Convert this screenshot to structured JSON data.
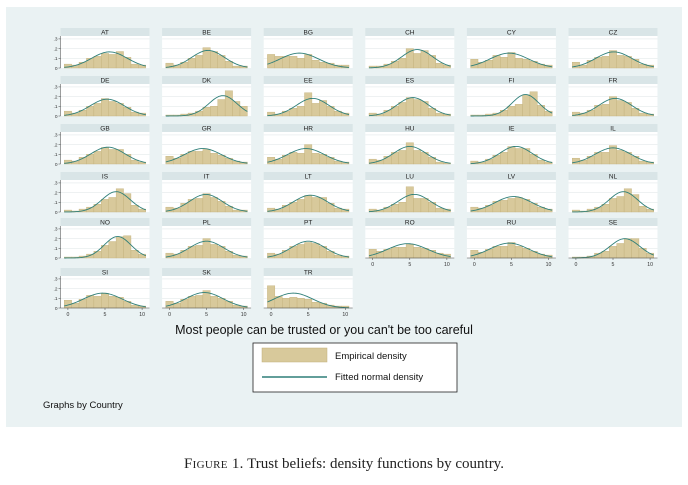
{
  "figure": {
    "caption_label": "Figure 1.",
    "caption_text": "Trust beliefs: density functions by country."
  },
  "colors": {
    "panel_bg": "#eaf2f3",
    "plot_bg": "#ffffff",
    "strip_bg": "#d9e5e7",
    "bar_fill": "#d8c99b",
    "bar_stroke": "#c2b07a",
    "normal_line": "#2f7f79",
    "grid": "#e3e9ea"
  },
  "chart_data": {
    "type": "bar",
    "overlay": "normal density line",
    "xlabel": "Most people can be trusted or you can't be too careful",
    "ylabel": "",
    "x_ticks": [
      0,
      5,
      10
    ],
    "y_ticks": [
      0,
      0.1,
      0.2,
      0.3
    ],
    "y_tick_labels": [
      "0",
      ".1",
      ".2",
      ".3"
    ],
    "ylim": [
      0,
      0.33
    ],
    "categories": [
      0,
      1,
      2,
      3,
      4,
      5,
      6,
      7,
      8,
      9,
      10
    ],
    "legend": {
      "position": "bottom-center",
      "items": [
        "Empirical density",
        "Fitted normal density"
      ]
    },
    "note": "Graphs by Country",
    "panels": [
      {
        "country": "AT",
        "values": [
          0.04,
          0.03,
          0.06,
          0.1,
          0.12,
          0.15,
          0.14,
          0.17,
          0.11,
          0.04,
          0.03
        ],
        "mean": 5.6,
        "sd": 2.4
      },
      {
        "country": "BE",
        "values": [
          0.05,
          0.03,
          0.06,
          0.1,
          0.13,
          0.21,
          0.17,
          0.13,
          0.07,
          0.02,
          0.02
        ],
        "mean": 5.2,
        "sd": 2.2
      },
      {
        "country": "BG",
        "values": [
          0.14,
          0.12,
          0.12,
          0.12,
          0.1,
          0.14,
          0.08,
          0.06,
          0.05,
          0.03,
          0.03
        ],
        "mean": 3.8,
        "sd": 2.6
      },
      {
        "country": "CH",
        "values": [
          0.02,
          0.02,
          0.04,
          0.07,
          0.1,
          0.2,
          0.15,
          0.18,
          0.13,
          0.05,
          0.03
        ],
        "mean": 6.0,
        "sd": 2.1
      },
      {
        "country": "CY",
        "values": [
          0.09,
          0.06,
          0.08,
          0.13,
          0.11,
          0.16,
          0.1,
          0.09,
          0.07,
          0.04,
          0.03
        ],
        "mean": 4.7,
        "sd": 2.6
      },
      {
        "country": "CZ",
        "values": [
          0.06,
          0.03,
          0.08,
          0.11,
          0.12,
          0.18,
          0.13,
          0.12,
          0.09,
          0.04,
          0.03
        ],
        "mean": 5.1,
        "sd": 2.4
      },
      {
        "country": "DE",
        "values": [
          0.05,
          0.03,
          0.06,
          0.1,
          0.13,
          0.18,
          0.15,
          0.13,
          0.09,
          0.04,
          0.03
        ],
        "mean": 5.3,
        "sd": 2.3
      },
      {
        "country": "DK",
        "values": [
          0.01,
          0.01,
          0.02,
          0.03,
          0.05,
          0.09,
          0.1,
          0.17,
          0.26,
          0.15,
          0.1
        ],
        "mean": 7.2,
        "sd": 1.9
      },
      {
        "country": "EE",
        "values": [
          0.04,
          0.02,
          0.05,
          0.08,
          0.1,
          0.24,
          0.13,
          0.16,
          0.1,
          0.05,
          0.03
        ],
        "mean": 5.6,
        "sd": 2.2
      },
      {
        "country": "ES",
        "values": [
          0.03,
          0.02,
          0.06,
          0.1,
          0.14,
          0.19,
          0.17,
          0.15,
          0.08,
          0.03,
          0.02
        ],
        "mean": 5.4,
        "sd": 2.1
      },
      {
        "country": "FI",
        "values": [
          0.01,
          0.01,
          0.02,
          0.03,
          0.06,
          0.1,
          0.12,
          0.22,
          0.25,
          0.11,
          0.05
        ],
        "mean": 6.9,
        "sd": 1.8
      },
      {
        "country": "FR",
        "values": [
          0.04,
          0.03,
          0.06,
          0.11,
          0.12,
          0.2,
          0.16,
          0.14,
          0.08,
          0.03,
          0.02
        ],
        "mean": 5.3,
        "sd": 2.2
      },
      {
        "country": "GB",
        "values": [
          0.04,
          0.03,
          0.07,
          0.1,
          0.13,
          0.17,
          0.15,
          0.15,
          0.1,
          0.04,
          0.02
        ],
        "mean": 5.4,
        "sd": 2.3
      },
      {
        "country": "GR",
        "values": [
          0.08,
          0.06,
          0.1,
          0.13,
          0.13,
          0.15,
          0.11,
          0.09,
          0.06,
          0.03,
          0.02
        ],
        "mean": 4.5,
        "sd": 2.5
      },
      {
        "country": "HR",
        "values": [
          0.07,
          0.05,
          0.09,
          0.12,
          0.11,
          0.2,
          0.11,
          0.1,
          0.07,
          0.03,
          0.02
        ],
        "mean": 4.7,
        "sd": 2.5
      },
      {
        "country": "HU",
        "values": [
          0.05,
          0.04,
          0.08,
          0.12,
          0.14,
          0.22,
          0.14,
          0.12,
          0.07,
          0.02,
          0.01
        ],
        "mean": 5.0,
        "sd": 2.2
      },
      {
        "country": "IE",
        "values": [
          0.03,
          0.02,
          0.05,
          0.09,
          0.12,
          0.18,
          0.16,
          0.16,
          0.1,
          0.04,
          0.02
        ],
        "mean": 5.6,
        "sd": 2.2
      },
      {
        "country": "IL",
        "values": [
          0.06,
          0.04,
          0.08,
          0.12,
          0.12,
          0.19,
          0.14,
          0.12,
          0.08,
          0.03,
          0.02
        ],
        "mean": 5.0,
        "sd": 2.4
      },
      {
        "country": "IS",
        "values": [
          0.02,
          0.01,
          0.03,
          0.05,
          0.08,
          0.13,
          0.15,
          0.24,
          0.19,
          0.07,
          0.03
        ],
        "mean": 6.5,
        "sd": 1.9
      },
      {
        "country": "IT",
        "values": [
          0.05,
          0.04,
          0.09,
          0.13,
          0.14,
          0.19,
          0.15,
          0.11,
          0.06,
          0.02,
          0.02
        ],
        "mean": 4.9,
        "sd": 2.2
      },
      {
        "country": "LT",
        "values": [
          0.04,
          0.03,
          0.07,
          0.1,
          0.13,
          0.17,
          0.15,
          0.15,
          0.09,
          0.04,
          0.03
        ],
        "mean": 5.3,
        "sd": 2.3
      },
      {
        "country": "LU",
        "values": [
          0.03,
          0.02,
          0.05,
          0.08,
          0.1,
          0.26,
          0.14,
          0.14,
          0.1,
          0.04,
          0.03
        ],
        "mean": 5.6,
        "sd": 2.2
      },
      {
        "country": "LV",
        "values": [
          0.05,
          0.04,
          0.07,
          0.11,
          0.12,
          0.14,
          0.15,
          0.13,
          0.09,
          0.05,
          0.03
        ],
        "mean": 5.3,
        "sd": 2.5
      },
      {
        "country": "NL",
        "values": [
          0.02,
          0.01,
          0.03,
          0.05,
          0.08,
          0.14,
          0.16,
          0.24,
          0.18,
          0.06,
          0.03
        ],
        "mean": 6.4,
        "sd": 1.9
      },
      {
        "country": "NO",
        "values": [
          0.01,
          0.01,
          0.02,
          0.04,
          0.07,
          0.13,
          0.17,
          0.22,
          0.23,
          0.08,
          0.04
        ],
        "mean": 6.7,
        "sd": 1.8
      },
      {
        "country": "PL",
        "values": [
          0.05,
          0.04,
          0.08,
          0.12,
          0.13,
          0.2,
          0.14,
          0.12,
          0.07,
          0.03,
          0.02
        ],
        "mean": 5.0,
        "sd": 2.3
      },
      {
        "country": "PT",
        "values": [
          0.05,
          0.04,
          0.08,
          0.12,
          0.14,
          0.16,
          0.15,
          0.12,
          0.07,
          0.03,
          0.02
        ],
        "mean": 5.0,
        "sd": 2.3
      },
      {
        "country": "RO",
        "values": [
          0.09,
          0.07,
          0.09,
          0.11,
          0.11,
          0.14,
          0.11,
          0.1,
          0.08,
          0.05,
          0.04
        ],
        "mean": 4.7,
        "sd": 2.7
      },
      {
        "country": "RU",
        "values": [
          0.08,
          0.06,
          0.09,
          0.12,
          0.12,
          0.16,
          0.12,
          0.1,
          0.07,
          0.04,
          0.03
        ],
        "mean": 4.7,
        "sd": 2.6
      },
      {
        "country": "SE",
        "values": [
          0.01,
          0.01,
          0.02,
          0.05,
          0.07,
          0.12,
          0.15,
          0.2,
          0.2,
          0.1,
          0.05
        ],
        "mean": 6.6,
        "sd": 2.0
      },
      {
        "country": "SI",
        "values": [
          0.08,
          0.05,
          0.09,
          0.13,
          0.12,
          0.15,
          0.12,
          0.11,
          0.07,
          0.03,
          0.02
        ],
        "mean": 4.7,
        "sd": 2.6
      },
      {
        "country": "SK",
        "values": [
          0.07,
          0.05,
          0.09,
          0.12,
          0.13,
          0.18,
          0.12,
          0.1,
          0.07,
          0.03,
          0.02
        ],
        "mean": 4.7,
        "sd": 2.5
      },
      {
        "country": "TR",
        "values": [
          0.23,
          0.12,
          0.1,
          0.11,
          0.1,
          0.09,
          0.06,
          0.05,
          0.03,
          0.02,
          0.02
        ],
        "mean": 3.0,
        "sd": 2.6
      }
    ]
  }
}
